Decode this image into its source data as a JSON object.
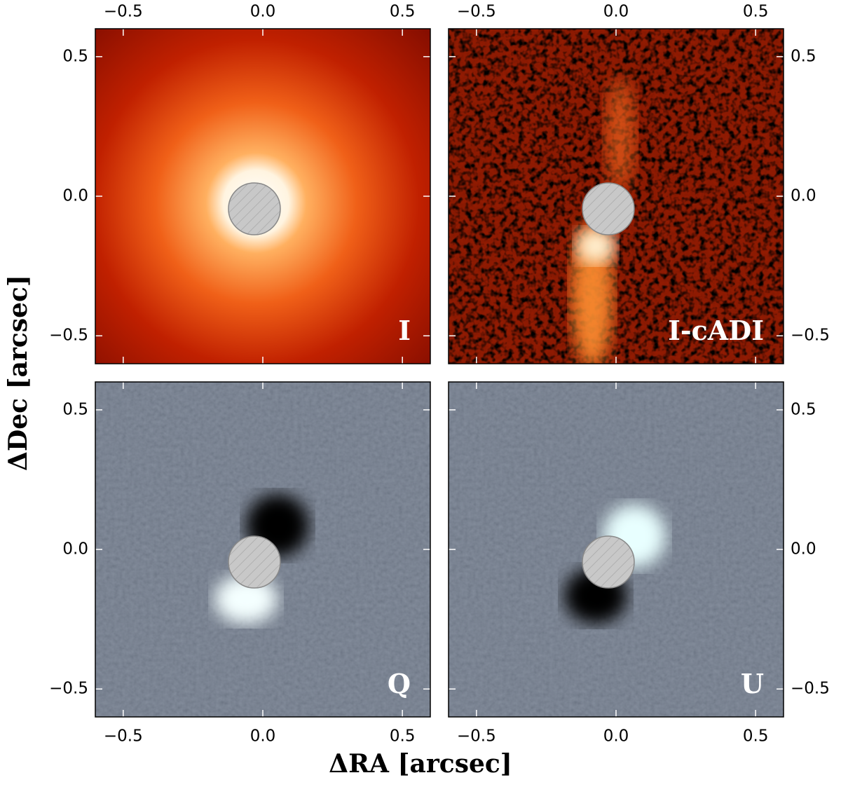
{
  "xlabel": "ΔRA [arcsec]",
  "ylabel": "ΔDec [arcsec]",
  "chart_data": [
    {
      "type": "image",
      "label": "I",
      "colormap": "hot",
      "xlim": [
        -0.6,
        0.6
      ],
      "ylim": [
        -0.6,
        0.6
      ],
      "xticks": [
        {
          "value": -0.5,
          "label": "−0.5"
        },
        {
          "value": 0,
          "label": "0.0"
        },
        0.5
      ],
      "yticks": [
        {
          "value": -0.5,
          "label": "−0.5"
        },
        {
          "value": 0,
          "label": "0.0"
        },
        0.5
      ]
    },
    {
      "type": "image",
      "label": "I-cADI",
      "colormap": "hot",
      "xlim": [
        -0.6,
        0.6
      ],
      "ylim": [
        -0.6,
        0.6
      ],
      "xticks": [
        {
          "value": -0.5,
          "label": "−0.5"
        },
        {
          "value": 0,
          "label": "0.0"
        },
        0.5
      ],
      "yticks": [
        {
          "value": -0.5,
          "label": "−0.5"
        },
        {
          "value": 0,
          "label": "0.0"
        },
        0.5
      ]
    },
    {
      "type": "image",
      "label": "Q",
      "colormap": "bone",
      "xlim": [
        -0.6,
        0.6
      ],
      "ylim": [
        -0.6,
        0.6
      ],
      "xticks": [
        {
          "value": -0.5,
          "label": "−0.5"
        },
        {
          "value": 0,
          "label": "0.0"
        },
        0.5
      ],
      "yticks": [
        {
          "value": -0.5,
          "label": "−0.5"
        },
        {
          "value": 0,
          "label": "0.0"
        },
        0.5
      ]
    },
    {
      "type": "image",
      "label": "U",
      "colormap": "bone",
      "xlim": [
        -0.6,
        0.6
      ],
      "ylim": [
        -0.6,
        0.6
      ],
      "xticks": [
        {
          "value": -0.5,
          "label": "−0.5"
        },
        {
          "value": 0,
          "label": "0.0"
        },
        0.5
      ],
      "yticks": [
        {
          "value": -0.5,
          "label": "−0.5"
        },
        {
          "value": 0,
          "label": "0.0"
        },
        0.5
      ]
    }
  ]
}
